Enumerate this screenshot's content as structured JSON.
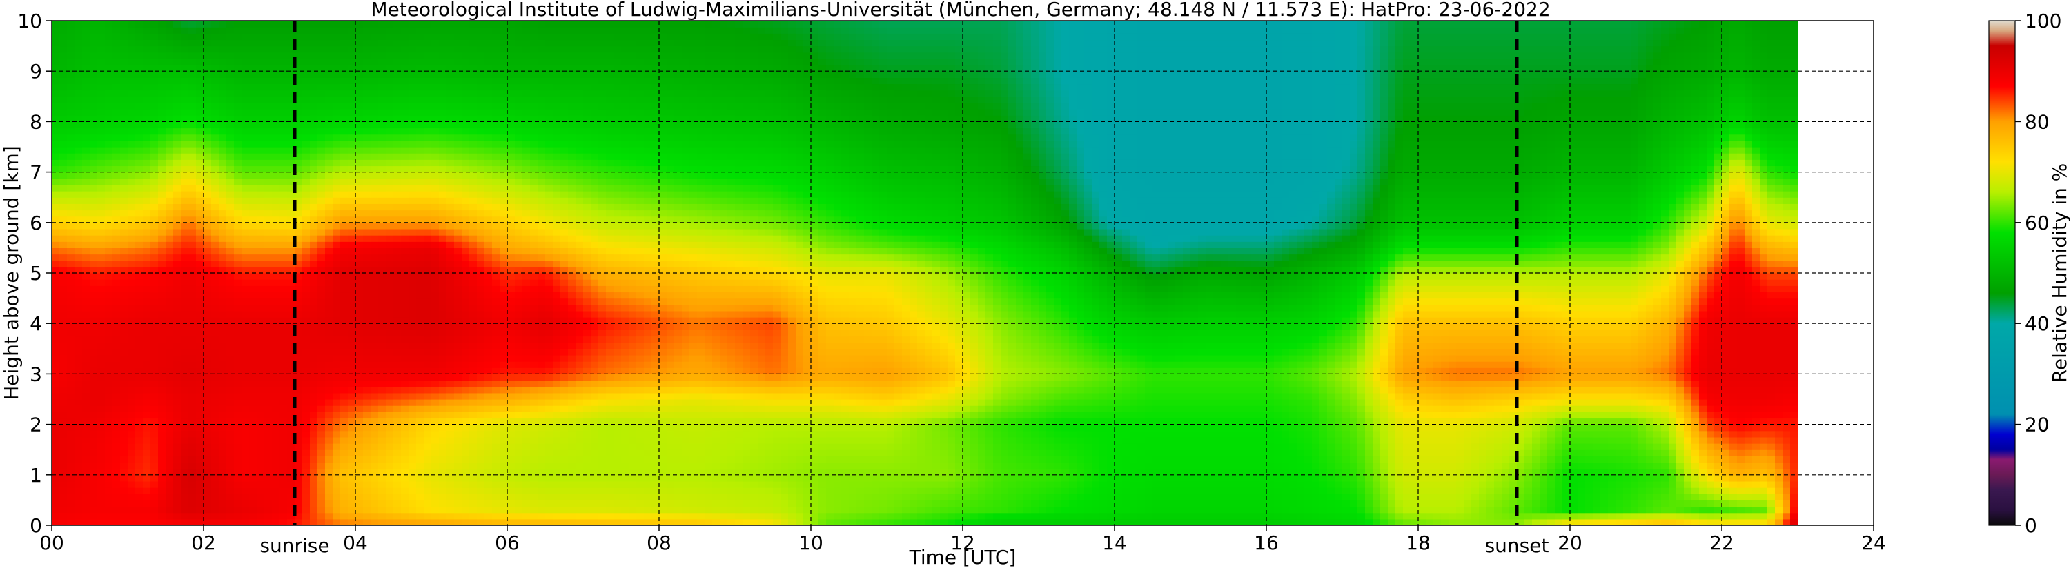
{
  "chart_data": {
    "type": "heatmap",
    "title": "Meteorological Institute of Ludwig-Maximilians-Universität (München, Germany; 48.148 N / 11.573 E):    HatPro: 23-06-2022",
    "xlabel": "Time [UTC]",
    "ylabel": "Height above ground [km]",
    "xlim": [
      0,
      24
    ],
    "ylim": [
      0,
      10
    ],
    "x_ticks": [
      0,
      2,
      4,
      6,
      8,
      10,
      12,
      14,
      16,
      18,
      20,
      22,
      24
    ],
    "x_tick_labels": [
      "00",
      "02",
      "04",
      "06",
      "08",
      "10",
      "12",
      "14",
      "16",
      "18",
      "20",
      "22",
      "24"
    ],
    "y_ticks": [
      0,
      1,
      2,
      3,
      4,
      5,
      6,
      7,
      8,
      9,
      10
    ],
    "y_tick_labels": [
      "0",
      "1",
      "2",
      "3",
      "4",
      "5",
      "6",
      "7",
      "8",
      "9",
      "10"
    ],
    "grid": true,
    "data_end_hour": 23.0,
    "markers": [
      {
        "label": "sunrise",
        "x": 3.2
      },
      {
        "label": "sunset",
        "x": 19.3
      }
    ],
    "colorbar": {
      "label": "Relative Humidity in %",
      "range": [
        0,
        100
      ],
      "ticks": [
        0,
        20,
        40,
        60,
        80,
        100
      ],
      "tick_labels": [
        "0",
        "20",
        "40",
        "60",
        "80",
        "100"
      ],
      "stops": [
        {
          "v": 0,
          "c": "#0a0a0a"
        },
        {
          "v": 3,
          "c": "#2a1040"
        },
        {
          "v": 7,
          "c": "#3a1850"
        },
        {
          "v": 10,
          "c": "#6a1a55"
        },
        {
          "v": 13,
          "c": "#8a1a70"
        },
        {
          "v": 15,
          "c": "#0000a0"
        },
        {
          "v": 18,
          "c": "#0000d0"
        },
        {
          "v": 22,
          "c": "#0090b0"
        },
        {
          "v": 40,
          "c": "#00a8a8"
        },
        {
          "v": 46,
          "c": "#00a000"
        },
        {
          "v": 58,
          "c": "#00e000"
        },
        {
          "v": 66,
          "c": "#b8ef00"
        },
        {
          "v": 72,
          "c": "#ffe000"
        },
        {
          "v": 80,
          "c": "#ffa000"
        },
        {
          "v": 87,
          "c": "#ff0000"
        },
        {
          "v": 95,
          "c": "#c80000"
        },
        {
          "v": 98,
          "c": "#d8a880"
        },
        {
          "v": 100,
          "c": "#e0dcd0"
        }
      ]
    },
    "rh_profiles": {
      "heights_km": [
        0,
        0.3,
        1,
        2,
        2.5,
        3,
        4,
        5,
        5.5,
        6,
        7,
        8,
        9,
        10
      ],
      "times_h": [
        0.0,
        0.6,
        1.3,
        1.8,
        2.5,
        3.2,
        3.8,
        5.0,
        6.0,
        6.5,
        7.3,
        8.5,
        9.5,
        10.2,
        11.0,
        11.8,
        12.5,
        13.3,
        13.9,
        14.5,
        15.2,
        16.0,
        16.6,
        17.2,
        17.8,
        18.5,
        19.3,
        20.0,
        20.8,
        21.3,
        21.8,
        22.2,
        22.6,
        23.0
      ],
      "rh": [
        [
          88,
          89,
          90,
          90,
          89,
          88,
          89,
          88,
          82,
          74,
          60,
          54,
          50,
          48
        ],
        [
          87,
          88,
          88,
          89,
          90,
          90,
          89,
          86,
          80,
          72,
          62,
          55,
          52,
          50
        ],
        [
          87,
          88,
          85,
          86,
          88,
          90,
          90,
          87,
          82,
          75,
          64,
          56,
          52,
          47
        ],
        [
          88,
          92,
          93,
          90,
          90,
          91,
          90,
          89,
          86,
          82,
          70,
          58,
          52,
          44
        ],
        [
          88,
          90,
          88,
          88,
          89,
          90,
          90,
          86,
          80,
          73,
          62,
          55,
          50,
          46
        ],
        [
          86,
          88,
          89,
          89,
          89,
          90,
          90,
          86,
          80,
          72,
          62,
          55,
          50,
          46
        ],
        [
          82,
          78,
          76,
          82,
          86,
          89,
          91,
          91,
          88,
          80,
          66,
          56,
          50,
          46
        ],
        [
          80,
          72,
          70,
          73,
          82,
          89,
          92,
          92,
          90,
          80,
          67,
          57,
          51,
          47
        ],
        [
          78,
          70,
          67,
          69,
          78,
          86,
          89,
          85,
          79,
          74,
          64,
          56,
          50,
          47
        ],
        [
          78,
          69,
          66,
          68,
          76,
          86,
          91,
          86,
          77,
          71,
          62,
          55,
          50,
          46
        ],
        [
          77,
          69,
          66,
          66,
          72,
          82,
          86,
          78,
          72,
          67,
          60,
          54,
          50,
          46
        ],
        [
          76,
          68,
          66,
          67,
          70,
          79,
          82,
          75,
          70,
          65,
          58,
          53,
          49,
          46
        ],
        [
          72,
          67,
          65,
          66,
          72,
          82,
          84,
          73,
          68,
          63,
          57,
          52,
          48,
          45
        ],
        [
          62,
          64,
          64,
          66,
          72,
          79,
          76,
          70,
          64,
          60,
          55,
          50,
          46,
          44
        ],
        [
          60,
          63,
          64,
          66,
          74,
          80,
          75,
          70,
          62,
          57,
          52,
          48,
          45,
          43
        ],
        [
          58,
          61,
          64,
          63,
          70,
          76,
          70,
          65,
          60,
          55,
          51,
          47,
          45,
          43
        ],
        [
          54,
          60,
          61,
          60,
          64,
          66,
          64,
          60,
          57,
          53,
          49,
          46,
          44,
          43
        ],
        [
          54,
          58,
          60,
          58,
          61,
          64,
          60,
          56,
          52,
          47,
          43,
          41,
          40,
          40
        ],
        [
          54,
          57,
          58,
          58,
          60,
          62,
          56,
          50,
          45,
          40,
          38,
          38,
          38,
          38
        ],
        [
          54,
          56,
          57,
          58,
          59,
          60,
          54,
          45,
          40,
          38,
          37,
          37,
          37,
          37
        ],
        [
          54,
          56,
          57,
          58,
          59,
          60,
          55,
          48,
          42,
          38,
          37,
          37,
          37,
          37
        ],
        [
          54,
          56,
          57,
          58,
          59,
          60,
          55,
          47,
          42,
          38,
          37,
          37,
          37,
          37
        ],
        [
          55,
          57,
          58,
          59,
          60,
          62,
          56,
          50,
          45,
          40,
          38,
          38,
          38,
          38
        ],
        [
          56,
          58,
          60,
          62,
          64,
          66,
          60,
          54,
          48,
          44,
          41,
          40,
          40,
          40
        ],
        [
          62,
          66,
          68,
          70,
          74,
          80,
          76,
          66,
          58,
          52,
          48,
          46,
          45,
          44
        ],
        [
          64,
          66,
          68,
          70,
          76,
          82,
          76,
          66,
          58,
          52,
          48,
          46,
          45,
          44
        ],
        [
          64,
          62,
          64,
          68,
          74,
          82,
          76,
          66,
          58,
          52,
          48,
          46,
          45,
          44
        ],
        [
          74,
          58,
          58,
          62,
          72,
          80,
          74,
          66,
          60,
          55,
          50,
          47,
          45,
          44
        ],
        [
          76,
          60,
          59,
          62,
          72,
          80,
          74,
          66,
          60,
          55,
          50,
          47,
          45,
          44
        ],
        [
          78,
          62,
          60,
          66,
          74,
          82,
          78,
          70,
          64,
          60,
          54,
          50,
          47,
          45
        ],
        [
          74,
          60,
          72,
          84,
          88,
          90,
          89,
          83,
          76,
          68,
          58,
          52,
          48,
          46
        ],
        [
          74,
          61,
          78,
          87,
          89,
          90,
          90,
          89,
          86,
          82,
          70,
          56,
          50,
          48
        ],
        [
          74,
          62,
          76,
          86,
          89,
          90,
          90,
          84,
          78,
          70,
          60,
          52,
          48,
          46
        ],
        [
          94,
          90,
          86,
          86,
          88,
          90,
          90,
          84,
          76,
          68,
          58,
          52,
          48,
          46
        ]
      ]
    }
  }
}
